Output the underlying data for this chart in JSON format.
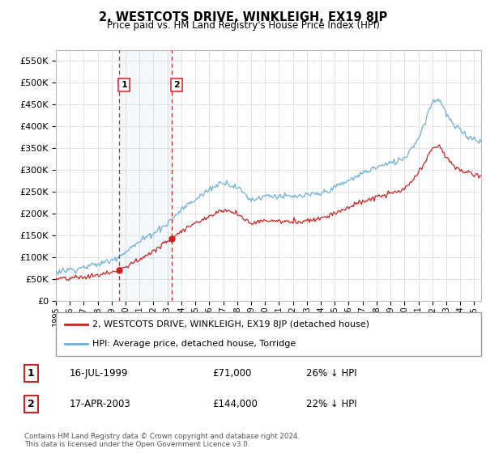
{
  "title": "2, WESTCOTS DRIVE, WINKLEIGH, EX19 8JP",
  "subtitle": "Price paid vs. HM Land Registry's House Price Index (HPI)",
  "hpi_color": "#6dafd6",
  "price_color": "#cc2222",
  "annotation_color": "#cc2222",
  "background_color": "#ffffff",
  "grid_color": "#dddddd",
  "ylim": [
    0,
    575000
  ],
  "yticks": [
    0,
    50000,
    100000,
    150000,
    200000,
    250000,
    300000,
    350000,
    400000,
    450000,
    500000,
    550000
  ],
  "transactions": [
    {
      "date": 1999.54,
      "price": 71000,
      "label": "1"
    },
    {
      "date": 2003.29,
      "price": 144000,
      "label": "2"
    }
  ],
  "legend_entries": [
    {
      "label": "2, WESTCOTS DRIVE, WINKLEIGH, EX19 8JP (detached house)",
      "color": "#cc2222"
    },
    {
      "label": "HPI: Average price, detached house, Torridge",
      "color": "#6dafd6"
    }
  ],
  "table_rows": [
    {
      "num": "1",
      "date": "16-JUL-1999",
      "price": "£71,000",
      "pct": "26% ↓ HPI"
    },
    {
      "num": "2",
      "date": "17-APR-2003",
      "price": "£144,000",
      "pct": "22% ↓ HPI"
    }
  ],
  "footer": "Contains HM Land Registry data © Crown copyright and database right 2024.\nThis data is licensed under the Open Government Licence v3.0.",
  "xstart": 1995.0,
  "xend": 2025.5
}
